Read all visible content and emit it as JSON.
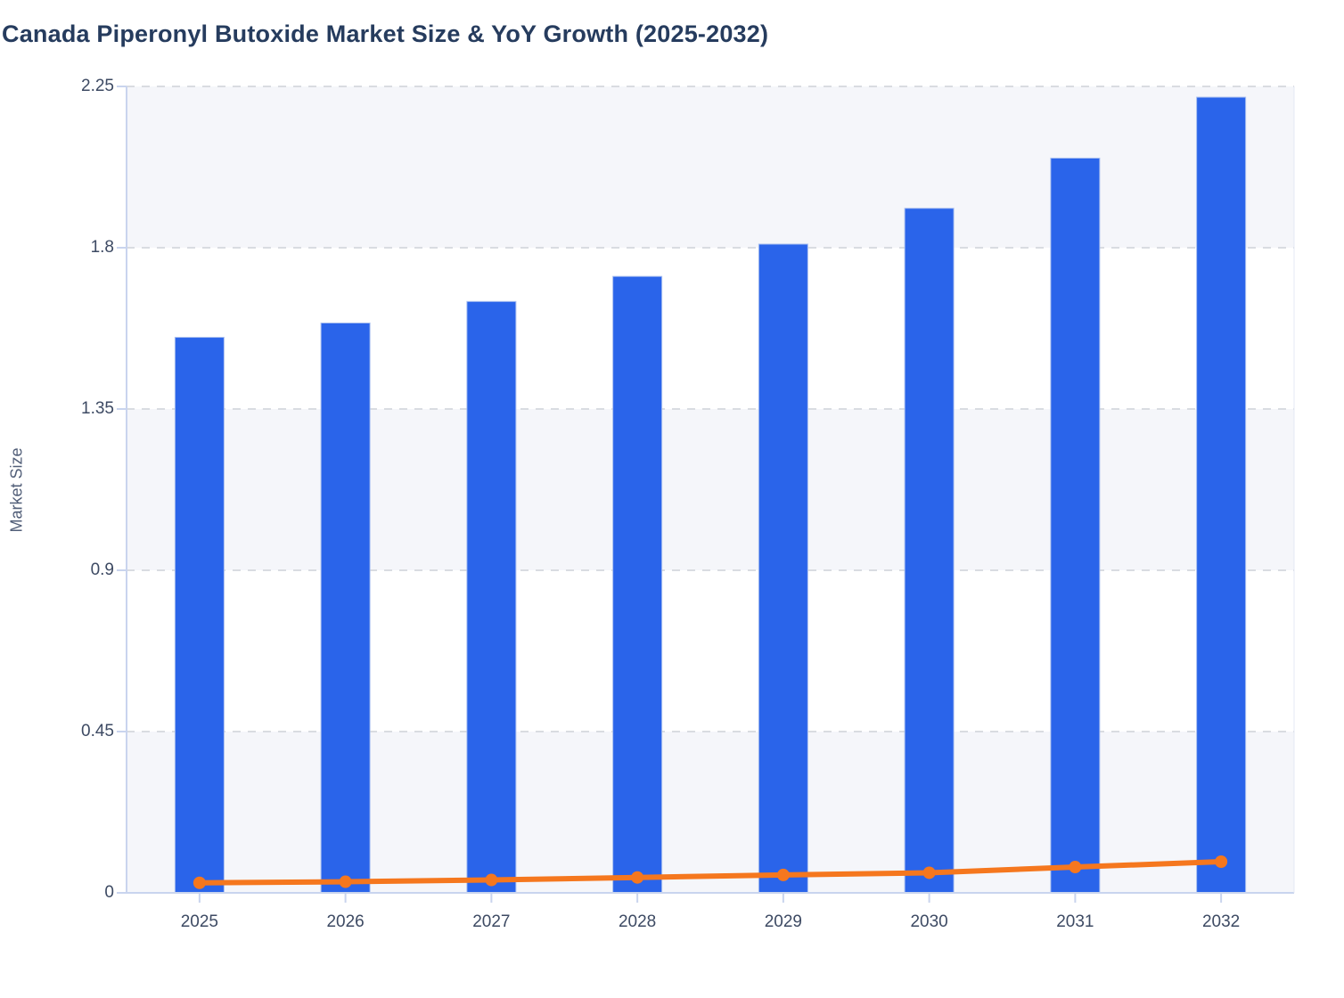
{
  "title": "Canada Piperonyl Butoxide Market Size & YoY Growth (2025-2032)",
  "chart_data": {
    "type": "bar",
    "title": "Canada Piperonyl Butoxide Market Size & YoY Growth (2025-2032)",
    "categories": [
      "2025",
      "2026",
      "2027",
      "2028",
      "2029",
      "2030",
      "2031",
      "2032"
    ],
    "series": [
      {
        "name": "Market Size",
        "type": "bar",
        "color": "#2A64EA",
        "values": [
          1.55,
          1.59,
          1.65,
          1.72,
          1.81,
          1.91,
          2.05,
          2.22
        ]
      },
      {
        "name": "YoY Growth",
        "type": "line",
        "color": "#F5771E",
        "values": [
          0.028,
          0.031,
          0.036,
          0.043,
          0.05,
          0.056,
          0.072,
          0.087
        ]
      }
    ],
    "xlabel": "",
    "ylabel": "Market Size",
    "ylim": [
      0,
      2.25
    ],
    "yticks": [
      0,
      0.45,
      0.9,
      1.35,
      1.8,
      2.25
    ],
    "ytick_labels": [
      "0",
      "0.45",
      "0.9",
      "1.35",
      "1.8",
      "2.25"
    ],
    "grid": "horizontal-dashed",
    "legend": "none",
    "plot_background": "alternating-horizontal-bands"
  },
  "colors": {
    "bar": "#2A64EA",
    "bar_edge": "#A9BFF0",
    "line": "#F5771E",
    "band": "#F5F6FA",
    "grid": "#D9DCE1",
    "axis": "#C9D4EE",
    "plot_right_edge": "#E4E8F4",
    "title_text": "#263C5E",
    "tick_text": "#3D4A63",
    "axis_label_text": "#515E78",
    "background": "#FFFFFF"
  }
}
